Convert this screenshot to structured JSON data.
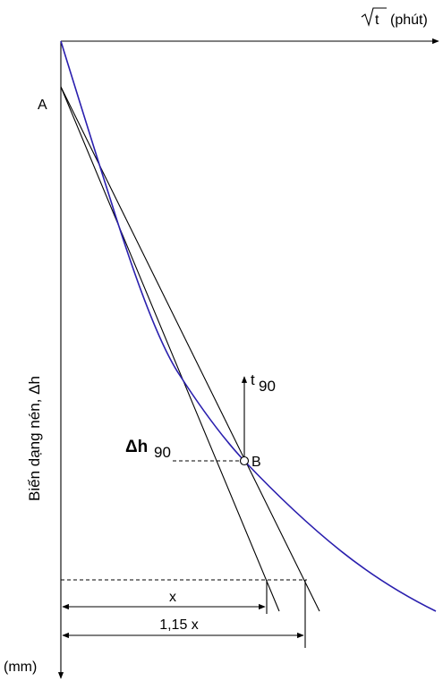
{
  "axes": {
    "x_label_root": "t",
    "x_label_unit": "(phút)",
    "y_label": "Biến dạng nén, Δh",
    "y_unit": "(mm)"
  },
  "points": {
    "a_label": "A",
    "b_label": "B"
  },
  "annotations": {
    "t90": "t",
    "t90_sub": "90",
    "dh90": "Δh",
    "dh90_sub": "90",
    "x_dim": "x",
    "x115_dim": "1,15 x"
  },
  "colors": {
    "curve": "#2a1fae",
    "lines": "#000000"
  }
}
